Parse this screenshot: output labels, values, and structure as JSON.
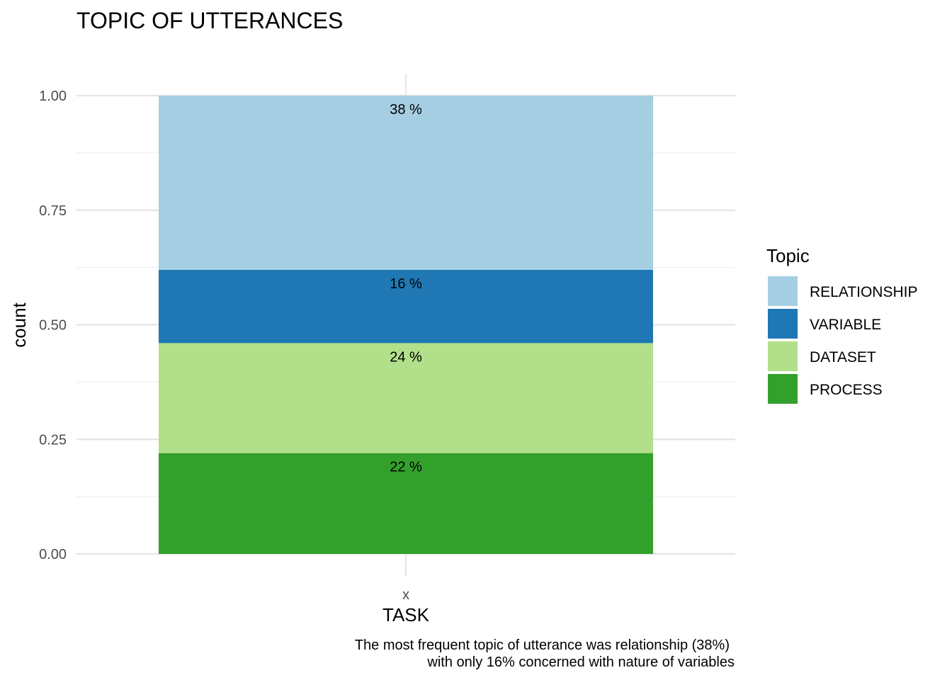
{
  "chart_data": {
    "type": "bar",
    "title": "TOPIC OF UTTERANCES",
    "xlabel": "TASK",
    "ylabel": "count",
    "categories": [
      "x"
    ],
    "ylim": [
      0,
      1
    ],
    "yticks": [
      "0.00",
      "0.25",
      "0.50",
      "0.75",
      "1.00"
    ],
    "stacked": true,
    "grid": true,
    "legend": {
      "title": "Topic",
      "position": "right"
    },
    "series": [
      {
        "name": "PROCESS",
        "values": [
          0.22
        ],
        "label": "22 %",
        "color": "#33A02C"
      },
      {
        "name": "DATASET",
        "values": [
          0.24
        ],
        "label": "24 %",
        "color": "#B2DF8A"
      },
      {
        "name": "VARIABLE",
        "values": [
          0.16
        ],
        "label": "16 %",
        "color": "#1F78B4"
      },
      {
        "name": "RELATIONSHIP",
        "values": [
          0.38
        ],
        "label": "38 %",
        "color": "#A6CEE3"
      }
    ],
    "legend_order": [
      "RELATIONSHIP",
      "VARIABLE",
      "DATASET",
      "PROCESS"
    ],
    "caption": [
      "The most frequent topic of utterance was relationship (38%)",
      "with only 16% concerned with nature of variables"
    ]
  }
}
